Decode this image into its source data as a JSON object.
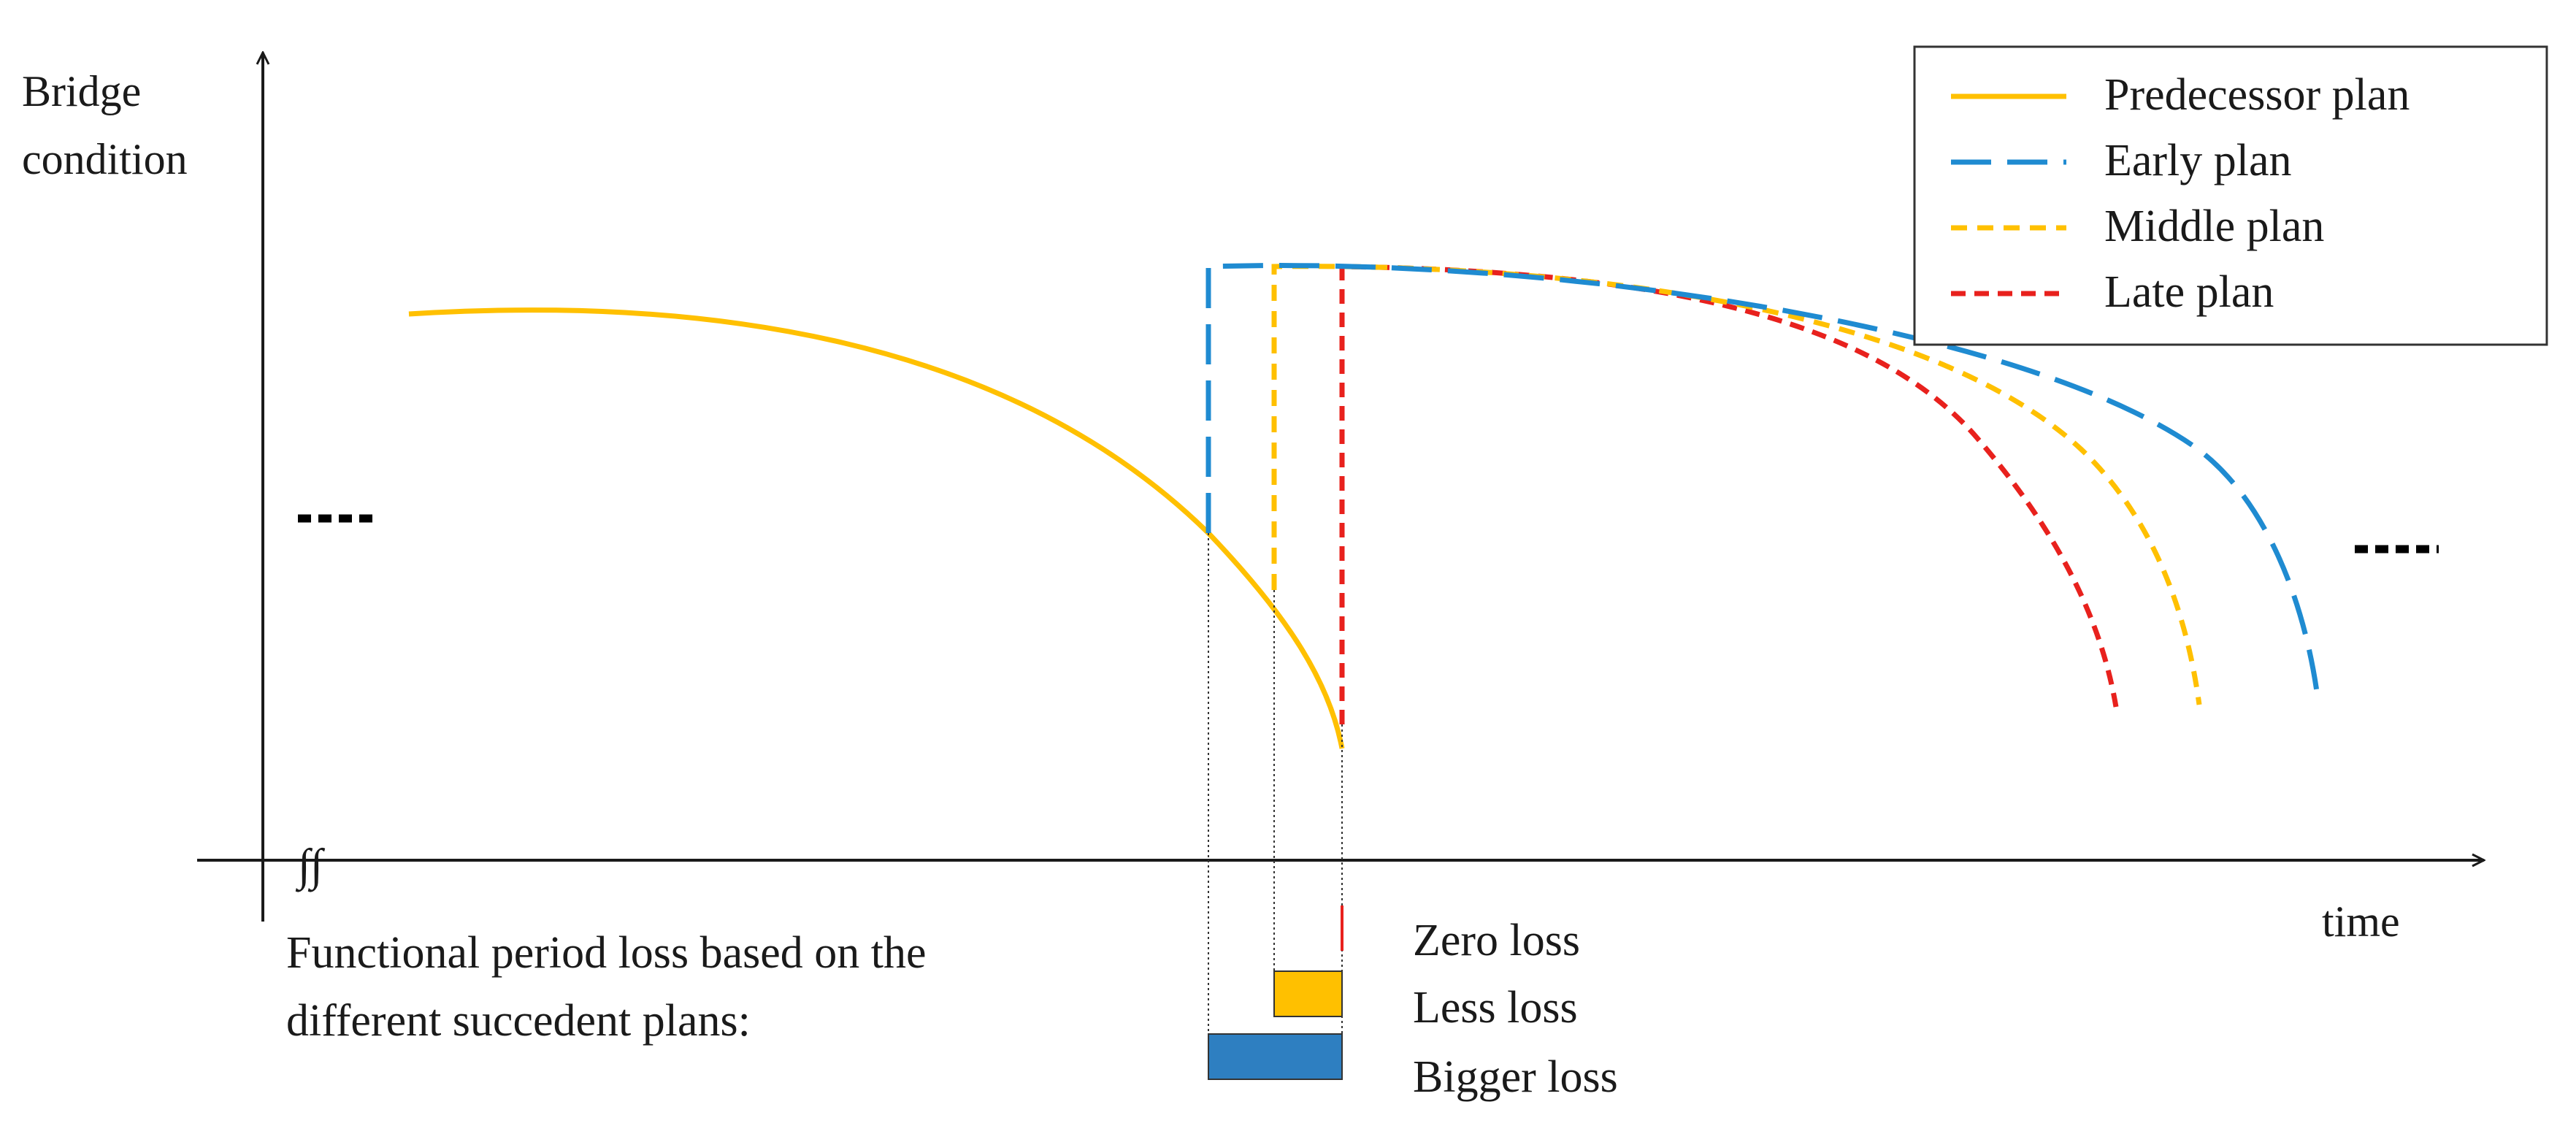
{
  "axes": {
    "y_label_line1": "Bridge",
    "y_label_line2": "condition",
    "x_label": "time",
    "break_symbol": "∫∫",
    "continuation_marker": "...."
  },
  "legend": {
    "items": [
      {
        "label": "Predecessor plan",
        "color": "#FFC000",
        "style": "solid"
      },
      {
        "label": "Early plan",
        "color": "#1F8BD1",
        "style": "long-dash"
      },
      {
        "label": "Middle plan",
        "color": "#FFC000",
        "style": "short-dash"
      },
      {
        "label": "Late plan",
        "color": "#E8211D",
        "style": "short-dash"
      }
    ]
  },
  "loss_note": {
    "line1": "Functional period loss based on the",
    "line2": "different succedent plans:"
  },
  "loss_items": [
    {
      "label": "Zero loss",
      "color": "#E8211D"
    },
    {
      "label": "Less loss",
      "color": "#FFC000"
    },
    {
      "label": "Bigger loss",
      "color": "#2E7FC1"
    }
  ]
}
